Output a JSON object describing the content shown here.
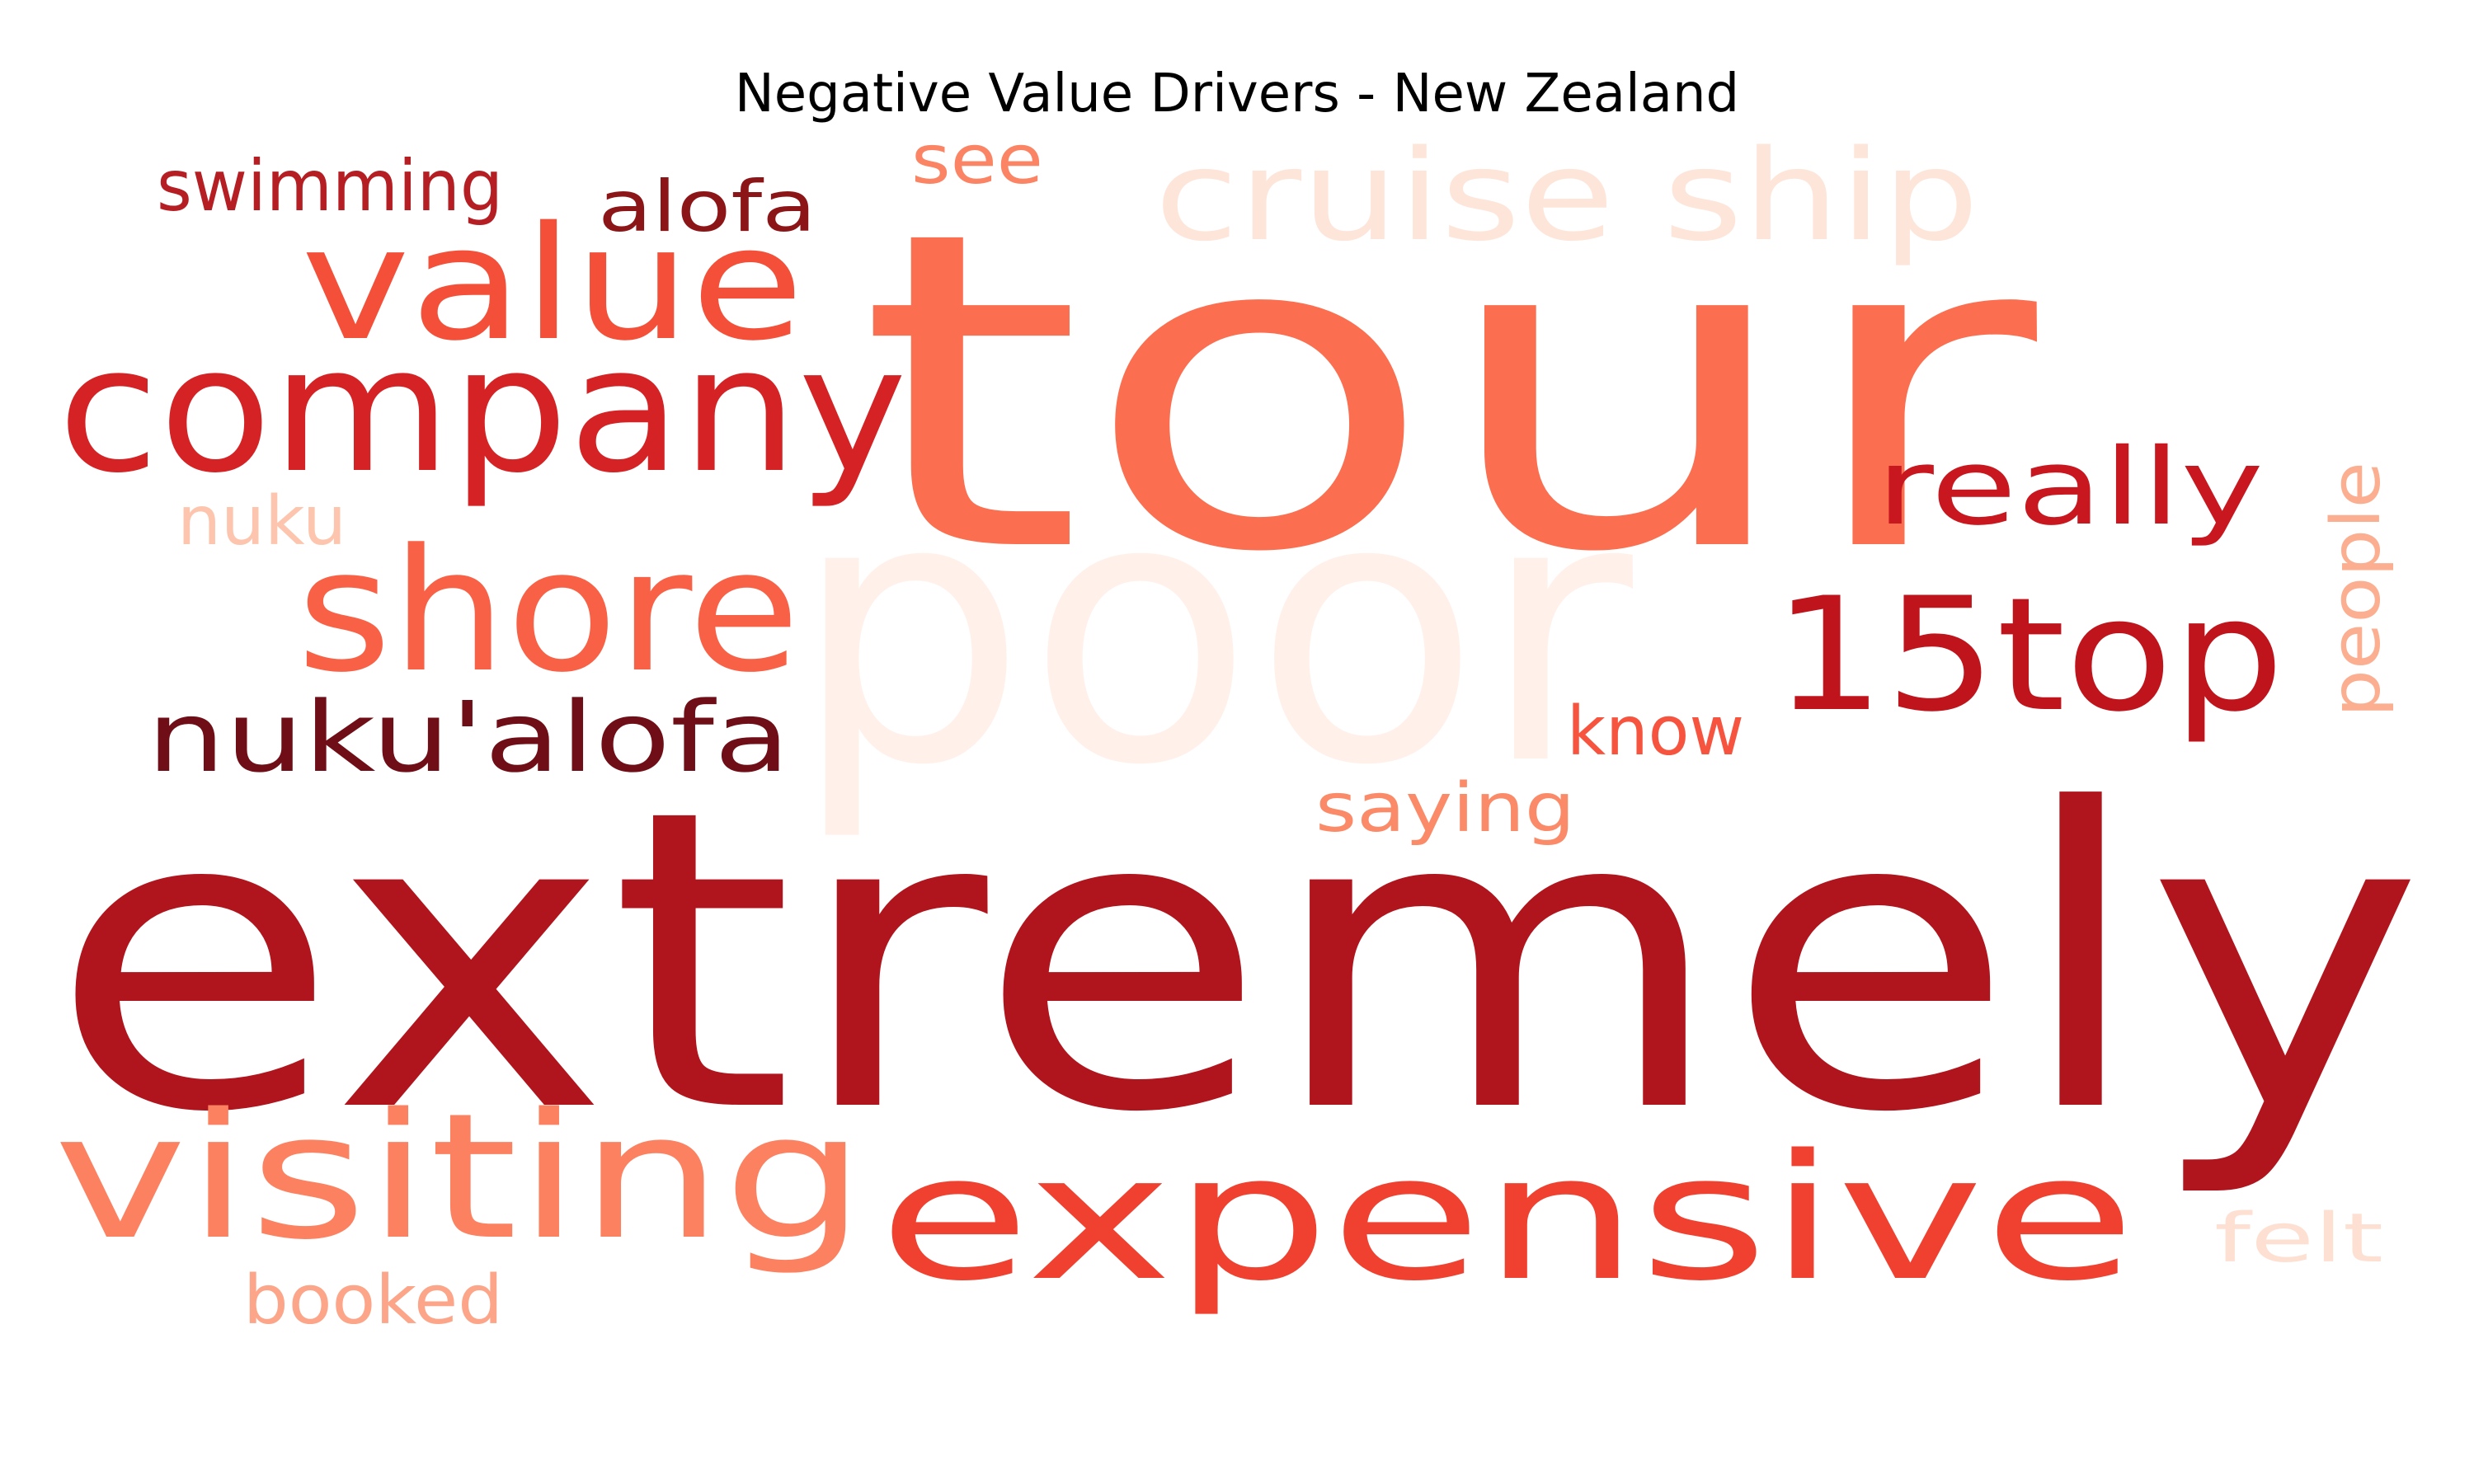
{
  "title": "Negative Value Drivers - New Zealand",
  "words": [
    {
      "text": "poor",
      "color": "#fff1ea"
    },
    {
      "text": "cruise ship",
      "color": "#fee5d9"
    },
    {
      "text": "tour",
      "color": "#fb6e4f"
    },
    {
      "text": "extremely",
      "color": "#b0141c"
    },
    {
      "text": "company",
      "color": "#d42225"
    },
    {
      "text": "value",
      "color": "#f44f39"
    },
    {
      "text": "swimming",
      "color": "#b51e23"
    },
    {
      "text": "alofa",
      "color": "#8c1518"
    },
    {
      "text": "see",
      "color": "#fb8464"
    },
    {
      "text": "shore",
      "color": "#f96147"
    },
    {
      "text": "nuku",
      "color": "#fdc5ad"
    },
    {
      "text": "nuku'alofa",
      "color": "#6f0e17"
    },
    {
      "text": "really",
      "color": "#c8171e"
    },
    {
      "text": "15top",
      "color": "#c0141c"
    },
    {
      "text": "people",
      "color": "#fcae91"
    },
    {
      "text": "know",
      "color": "#f7543f"
    },
    {
      "text": "saying",
      "color": "#fb8a68"
    },
    {
      "text": "visiting",
      "color": "#fc8161"
    },
    {
      "text": "expensive",
      "color": "#f0402f"
    },
    {
      "text": "booked",
      "color": "#fca588"
    },
    {
      "text": "felt",
      "color": "#fee0d2"
    }
  ]
}
